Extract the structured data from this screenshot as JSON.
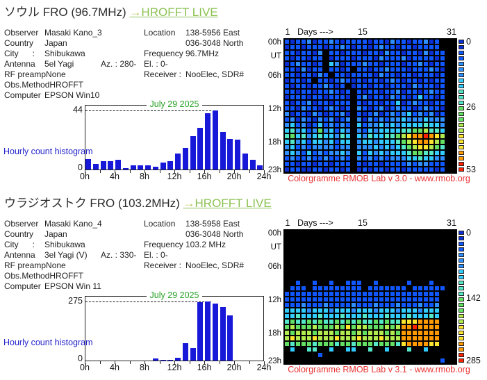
{
  "colors": {
    "link": "#8cc152",
    "histogram_bar": "#1818d8",
    "histogram_title_green": "#27a227",
    "caption_red": "#e83232",
    "histogram_label_blue": "#2424cc"
  },
  "palette": {
    "1": "#0b2fd4",
    "2": "#1057ff",
    "3": "#2f8fff",
    "4": "#33ccff",
    "5": "#55e8c8",
    "6": "#63df63",
    "7": "#b2ea4f",
    "8": "#ffe62e",
    "9": "#ff9900",
    "A": "#ff2200"
  },
  "sections": [
    {
      "title": "ソウル FRO (96.7MHz)",
      "live_link_arrow": "→",
      "live_link": "HROFFT LIVE",
      "info_rows": [
        {
          "l": "Observer",
          "v": "Masaki Kano_3",
          "mid": "",
          "rl": "Location",
          "rv": "138-5956 East"
        },
        {
          "l": "Country",
          "v": "Japan",
          "mid": "",
          "rl": "",
          "rv": "036-3048 North"
        },
        {
          "l": "City      :",
          "v": "Shibukawa",
          "mid": "",
          "rl": "Frequency",
          "rv": "96.7MHz"
        },
        {
          "l": "Antenna",
          "v": "5el Yagi",
          "mid": "Az. : 280-",
          "rl": "El. : 0-",
          "rv": ""
        },
        {
          "l": "RF preamp",
          "v": "None",
          "mid": "",
          "rl": "Receiver :",
          "rv": "NooElec, SDR#"
        },
        {
          "l": "Obs.Method",
          "v": "HROFFT",
          "mid": "",
          "rl": "",
          "rv": ""
        },
        {
          "l": "Computer",
          "v": "EPSON Win10",
          "mid": "",
          "rl": "",
          "rv": ""
        }
      ],
      "histogram": {
        "type": "bar",
        "label": "Hourly count histogram",
        "title": "July 29 2025",
        "ymax": 44,
        "ymax_label": "44",
        "ymin_label": "0",
        "xlabels": [
          "0h",
          "4h",
          "8h",
          "12h",
          "16h",
          "20h",
          "24h"
        ],
        "values": [
          8,
          4,
          6,
          6,
          7,
          1,
          3,
          3,
          3,
          2,
          5,
          6,
          12,
          16,
          25,
          31,
          42,
          44,
          28,
          23,
          22,
          12,
          7,
          3
        ]
      },
      "colorgramme": {
        "header": {
          "day1": "1",
          "days": "Days --->",
          "day15": "15",
          "day31": "31"
        },
        "row_labels": [
          "00h",
          "UT",
          "06h",
          "12h",
          "18h",
          "23h"
        ],
        "row_label_rows": [
          0,
          2.5,
          6,
          12,
          18,
          23
        ],
        "scale_labels": [
          "0",
          "26",
          "53"
        ],
        "scale_max": 53,
        "caption": "Colorgramme RMOB Lab v 3.0 - www.rmob.org",
        "grid": [
          "2122312232122221221322122312...",
          "1221222122321221232212212222...",
          "2212213.221222122132212213122..",
          "2122122.122212221322231222212..",
          "1232212.431222322122212232122..",
          "2213122.2212.2212232221222321..",
          "22122132.22122221322122122212..",
          "12212.22123212122123212212122..",
          "21221223212.12212212221322212..",
          "221221223212.2122122312212322..",
          "122212212221.2312213221242212..",
          "212231221222.2122122412322122..",
          "221322123212.3212312322123221..",
          "312213212231.2123123234232312..",
          "231321323123.3132323343334333..",
          "342312423232.4233434344445443..",
          "453423634243.3243444455667554..",
          "564534544354.435445567899A987..",
          "453424434244.3443444567899876..",
          "342323333233.3334343456788765..",
          "343242323343.4243434445665544..",
          "232232232232.3232323334454433..",
          "221221221222.2122122223233222..",
          "122112212212.1212212212222212.."
        ]
      }
    },
    {
      "title": "ウラジオストク FRO (103.2MHz)",
      "live_link_arrow": "→",
      "live_link": "HROFFT LIVE",
      "info_rows": [
        {
          "l": "Observer",
          "v": "Masaki Kano_4",
          "mid": "",
          "rl": "Location",
          "rv": "138-5958 East"
        },
        {
          "l": "Country",
          "v": "Japan",
          "mid": "",
          "rl": "",
          "rv": "036-3048 North"
        },
        {
          "l": "City      :",
          "v": "Shibukawa",
          "mid": "",
          "rl": "Frequency",
          "rv": "103.2 MHz"
        },
        {
          "l": "Antenna",
          "v": "3el Yagi (V)",
          "mid": "Az. : 330-",
          "rl": "El. : 0-",
          "rv": ""
        },
        {
          "l": "RF preamp",
          "v": "None",
          "mid": "",
          "rl": "Receiver :",
          "rv": "NooElec, SDR#"
        },
        {
          "l": "Obs.Method",
          "v": "HROFFT",
          "mid": "",
          "rl": "",
          "rv": ""
        },
        {
          "l": "Computer",
          "v": "EPSON Win 11",
          "mid": "",
          "rl": "",
          "rv": ""
        }
      ],
      "histogram": {
        "type": "bar",
        "label": "Hourly count histogram",
        "title": "July 29 2025",
        "ymax": 275,
        "ymax_label": "275",
        "ymin_label": "0",
        "xlabels": [
          "0h",
          "4h",
          "8h",
          "12h",
          "16h",
          "20h",
          "24h"
        ],
        "values": [
          0,
          0,
          0,
          0,
          0,
          0,
          0,
          0,
          0,
          9,
          3,
          3,
          13,
          82,
          59,
          272,
          275,
          264,
          248,
          211,
          0,
          0,
          0,
          0
        ]
      },
      "colorgramme": {
        "header": {
          "day1": "1",
          "days": "Days --->",
          "day15": "15",
          "day31": "31"
        },
        "row_labels": [
          "00h",
          "UT",
          "06h",
          "12h",
          "18h",
          "23h"
        ],
        "row_label_rows": [
          0,
          2.5,
          6,
          12,
          18,
          23
        ],
        "scale_labels": [
          "0",
          "142",
          "285"
        ],
        "scale_max": 285,
        "caption": "Colorgramme RMOB Lab v 3.1 - www.rmob.org",
        "grid": [
          "...............................",
          "...............................",
          "...............................",
          "...............................",
          "...............................",
          "...............................",
          "...............................",
          "...............................",
          "...............................",
          "..2..2..2..222..2.....2...2....",
          ".222.222222222.2222222.222222..",
          "2222222222222222222222222222...",
          "2222222222222222222222222222...",
          "2223222322223222322232223223...",
          "4444344434443444344434443444...",
          "4454445444544454445444544454...",
          "5655656556565655656558889999...",
          "67666766676867766676799A9999...",
          "7677767776776767776769999999...",
          "7877787778777877787779999999...",
          "6566656665665666566658999988...",
          ".4..55..4..44..5..4...5..4.....",
          "......2........................",
          "............................2.."
        ]
      }
    }
  ]
}
